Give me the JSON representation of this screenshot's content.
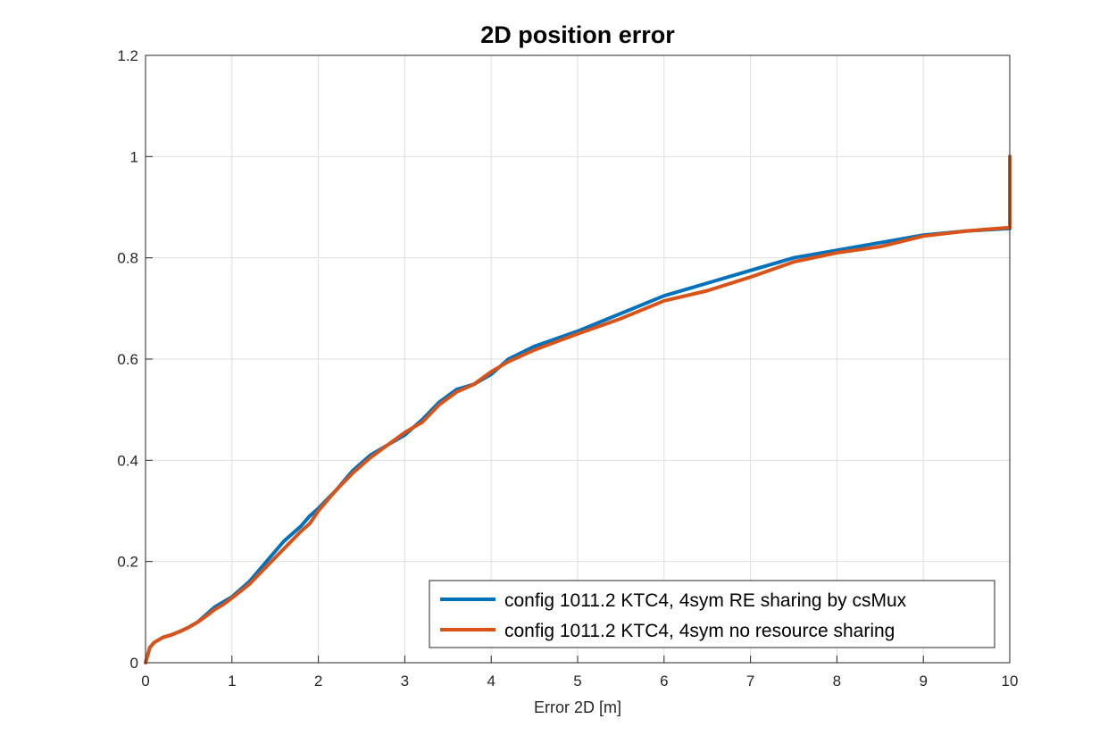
{
  "chart_data": {
    "type": "line",
    "title": "2D position error",
    "xlabel": "Error 2D [m]",
    "ylabel": "",
    "xlim": [
      0,
      10
    ],
    "ylim": [
      0,
      1.2
    ],
    "xticks": [
      "0",
      "1",
      "2",
      "3",
      "4",
      "5",
      "6",
      "7",
      "8",
      "9",
      "10"
    ],
    "yticks": [
      "0",
      "0.2",
      "0.4",
      "0.6",
      "0.8",
      "1",
      "1.2"
    ],
    "grid": true,
    "legend_position": "bottom-right",
    "series": [
      {
        "name": "config 1011.2 KTC4, 4sym RE sharing by csMux",
        "color": "#0072bd",
        "x": [
          0,
          0.05,
          0.1,
          0.2,
          0.3,
          0.4,
          0.5,
          0.6,
          0.7,
          0.8,
          0.9,
          1.0,
          1.2,
          1.4,
          1.6,
          1.8,
          1.9,
          2.0,
          2.2,
          2.4,
          2.6,
          2.8,
          3.0,
          3.2,
          3.4,
          3.6,
          3.8,
          4.0,
          4.2,
          4.5,
          5.0,
          5.5,
          6.0,
          6.5,
          7.0,
          7.5,
          8.0,
          8.5,
          9.0,
          9.5,
          10.0,
          10.0
        ],
        "y": [
          0,
          0.03,
          0.04,
          0.05,
          0.055,
          0.062,
          0.07,
          0.08,
          0.095,
          0.11,
          0.12,
          0.13,
          0.16,
          0.2,
          0.24,
          0.27,
          0.29,
          0.305,
          0.34,
          0.38,
          0.41,
          0.43,
          0.45,
          0.48,
          0.515,
          0.54,
          0.55,
          0.57,
          0.6,
          0.625,
          0.655,
          0.69,
          0.725,
          0.75,
          0.775,
          0.8,
          0.815,
          0.83,
          0.845,
          0.853,
          0.858,
          1.0
        ]
      },
      {
        "name": "config 1011.2 KTC4, 4sym no resource sharing",
        "color": "#d95319",
        "x": [
          0,
          0.05,
          0.1,
          0.2,
          0.3,
          0.4,
          0.5,
          0.6,
          0.7,
          0.8,
          0.9,
          1.0,
          1.2,
          1.4,
          1.6,
          1.8,
          1.9,
          2.0,
          2.2,
          2.4,
          2.6,
          2.8,
          3.0,
          3.2,
          3.4,
          3.6,
          3.8,
          4.0,
          4.2,
          4.5,
          5.0,
          5.5,
          6.0,
          6.5,
          7.0,
          7.5,
          8.0,
          8.5,
          9.0,
          9.5,
          10.0,
          10.0
        ],
        "y": [
          0,
          0.03,
          0.04,
          0.05,
          0.055,
          0.062,
          0.07,
          0.08,
          0.092,
          0.105,
          0.115,
          0.128,
          0.155,
          0.19,
          0.225,
          0.26,
          0.275,
          0.3,
          0.34,
          0.375,
          0.405,
          0.43,
          0.455,
          0.475,
          0.51,
          0.535,
          0.55,
          0.575,
          0.595,
          0.618,
          0.65,
          0.68,
          0.715,
          0.735,
          0.762,
          0.792,
          0.81,
          0.822,
          0.843,
          0.853,
          0.86,
          1.0
        ]
      }
    ]
  }
}
